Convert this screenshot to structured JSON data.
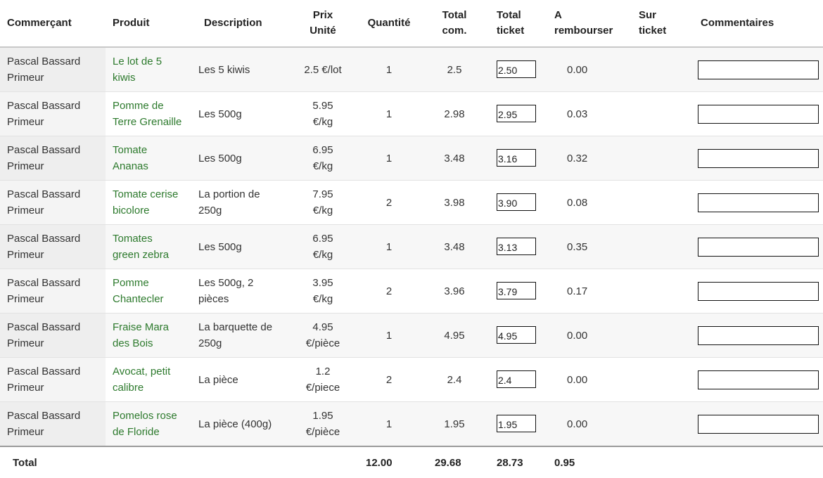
{
  "headers": {
    "merchant": "Commerçant",
    "product": "Produit",
    "description": "Description",
    "unit_price_1": "Prix",
    "unit_price_2": "Unité",
    "quantity": "Quantité",
    "order_total_1": "Total",
    "order_total_2": "com.",
    "ticket_total_1": "Total",
    "ticket_total_2": "ticket",
    "refund_1": "A",
    "refund_2": "rembourser",
    "on_ticket_1": "Sur",
    "on_ticket_2": "ticket",
    "comments": "Commentaires"
  },
  "rows": [
    {
      "merchant_1": "Pascal Bassard",
      "merchant_2": "Primeur",
      "product_1": "Le lot de 5",
      "product_2": "kiwis",
      "desc_1": "Les 5 kiwis",
      "desc_2": "",
      "price_1": "2.5 €/lot",
      "price_2": "",
      "qty": "1",
      "order_total": "2.5",
      "ticket_total": "2.50",
      "refund": "0.00",
      "comment": ""
    },
    {
      "merchant_1": "Pascal Bassard",
      "merchant_2": "Primeur",
      "product_1": "Pomme de",
      "product_2": "Terre Grenaille",
      "desc_1": "Les 500g",
      "desc_2": "",
      "price_1": "5.95",
      "price_2": "€/kg",
      "qty": "1",
      "order_total": "2.98",
      "ticket_total": "2.95",
      "refund": "0.03",
      "comment": ""
    },
    {
      "merchant_1": "Pascal Bassard",
      "merchant_2": "Primeur",
      "product_1": "Tomate",
      "product_2": "Ananas",
      "desc_1": "Les 500g",
      "desc_2": "",
      "price_1": "6.95",
      "price_2": "€/kg",
      "qty": "1",
      "order_total": "3.48",
      "ticket_total": "3.16",
      "refund": "0.32",
      "comment": ""
    },
    {
      "merchant_1": "Pascal Bassard",
      "merchant_2": "Primeur",
      "product_1": "Tomate cerise",
      "product_2": "bicolore",
      "desc_1": "La portion de",
      "desc_2": "250g",
      "price_1": "7.95",
      "price_2": "€/kg",
      "qty": "2",
      "order_total": "3.98",
      "ticket_total": "3.90",
      "refund": "0.08",
      "comment": ""
    },
    {
      "merchant_1": "Pascal Bassard",
      "merchant_2": "Primeur",
      "product_1": "Tomates",
      "product_2": "green zebra",
      "desc_1": "Les 500g",
      "desc_2": "",
      "price_1": "6.95",
      "price_2": "€/kg",
      "qty": "1",
      "order_total": "3.48",
      "ticket_total": "3.13",
      "refund": "0.35",
      "comment": ""
    },
    {
      "merchant_1": "Pascal Bassard",
      "merchant_2": "Primeur",
      "product_1": "Pomme",
      "product_2": "Chantecler",
      "desc_1": "Les 500g, 2",
      "desc_2": "pièces",
      "price_1": "3.95",
      "price_2": "€/kg",
      "qty": "2",
      "order_total": "3.96",
      "ticket_total": "3.79",
      "refund": "0.17",
      "comment": ""
    },
    {
      "merchant_1": "Pascal Bassard",
      "merchant_2": "Primeur",
      "product_1": "Fraise Mara",
      "product_2": "des Bois",
      "desc_1": "La barquette de",
      "desc_2": "250g",
      "price_1": "4.95",
      "price_2": "€/pièce",
      "qty": "1",
      "order_total": "4.95",
      "ticket_total": "4.95",
      "refund": "0.00",
      "comment": ""
    },
    {
      "merchant_1": "Pascal Bassard",
      "merchant_2": "Primeur",
      "product_1": "Avocat, petit",
      "product_2": "calibre",
      "desc_1": "La pièce",
      "desc_2": "",
      "price_1": "1.2",
      "price_2": "€/piece",
      "qty": "2",
      "order_total": "2.4",
      "ticket_total": "2.4",
      "refund": "0.00",
      "comment": ""
    },
    {
      "merchant_1": "Pascal Bassard",
      "merchant_2": "Primeur",
      "product_1": "Pomelos rose",
      "product_2": "de Floride",
      "desc_1": "La pièce (400g)",
      "desc_2": "",
      "price_1": "1.95",
      "price_2": "€/pièce",
      "qty": "1",
      "order_total": "1.95",
      "ticket_total": "1.95",
      "refund": "0.00",
      "comment": ""
    }
  ],
  "footer": {
    "label": "Total",
    "quantity": "12.00",
    "order_total": "29.68",
    "ticket_total": "28.73",
    "refund": "0.95"
  }
}
